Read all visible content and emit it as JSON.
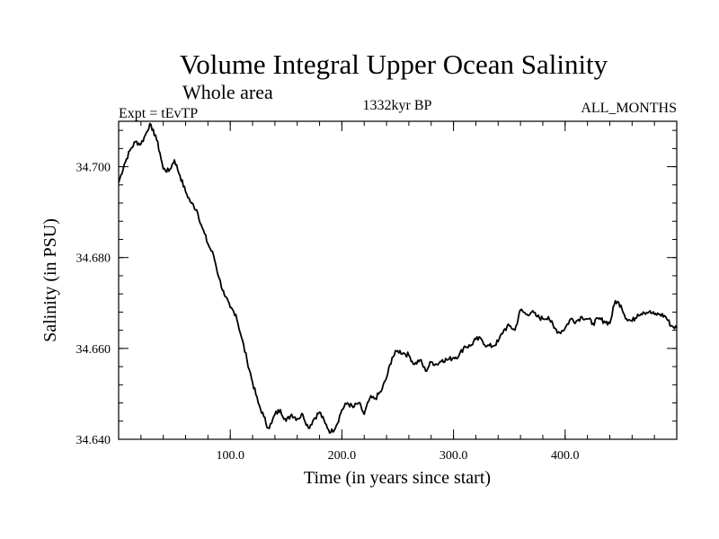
{
  "chart_data": {
    "type": "line",
    "title": "Volume Integral Upper Ocean Salinity",
    "subtitle": "Whole area",
    "left_label": "Expt = tEvTP",
    "center_label": "1332kyr BP",
    "right_label": "ALL_MONTHS",
    "xlabel": "Time (in years since start)",
    "ylabel": "Salinity (in PSU)",
    "xlim": [
      0,
      500
    ],
    "ylim": [
      34.64,
      34.71
    ],
    "x_ticks": [
      100,
      200,
      300,
      400
    ],
    "x_tick_labels": [
      "100.0",
      "200.0",
      "300.0",
      "400.0"
    ],
    "y_ticks": [
      34.64,
      34.66,
      34.68,
      34.7
    ],
    "y_tick_labels": [
      "34.640",
      "34.660",
      "34.680",
      "34.700"
    ],
    "x_minor_step": 20,
    "y_minor_step": 0.004,
    "grid": false,
    "line_color": "#000000",
    "series": [
      {
        "name": "salinity",
        "x": [
          0,
          5,
          10,
          15,
          20,
          24,
          28,
          30,
          33,
          37,
          40,
          45,
          50,
          55,
          60,
          65,
          70,
          75,
          80,
          85,
          90,
          95,
          100,
          105,
          110,
          115,
          120,
          125,
          130,
          134,
          137,
          140,
          145,
          150,
          155,
          160,
          165,
          170,
          175,
          180,
          185,
          190,
          195,
          200,
          205,
          210,
          215,
          220,
          225,
          230,
          235,
          240,
          245,
          250,
          255,
          260,
          265,
          270,
          275,
          280,
          285,
          290,
          295,
          300,
          305,
          310,
          315,
          320,
          325,
          330,
          335,
          340,
          345,
          350,
          355,
          360,
          365,
          370,
          375,
          380,
          385,
          390,
          395,
          400,
          405,
          410,
          415,
          420,
          425,
          430,
          435,
          440,
          445,
          450,
          455,
          460,
          465,
          470,
          475,
          480,
          485,
          490,
          495,
          500
        ],
        "values": [
          34.6965,
          34.7005,
          34.7035,
          34.7055,
          34.705,
          34.707,
          34.7095,
          34.708,
          34.707,
          34.703,
          34.6995,
          34.699,
          34.7015,
          34.698,
          34.6945,
          34.692,
          34.6905,
          34.6865,
          34.683,
          34.6805,
          34.6755,
          34.6715,
          34.669,
          34.6675,
          34.6625,
          34.6575,
          34.6525,
          34.648,
          34.645,
          34.6425,
          34.6435,
          34.6455,
          34.6465,
          34.644,
          34.6455,
          34.6445,
          34.6455,
          34.6425,
          34.6445,
          34.646,
          34.6435,
          34.6415,
          34.643,
          34.6465,
          34.648,
          34.647,
          34.648,
          34.6455,
          34.649,
          34.649,
          34.6505,
          34.6535,
          34.658,
          34.6595,
          34.659,
          34.6585,
          34.6565,
          34.6575,
          34.655,
          34.657,
          34.6565,
          34.6575,
          34.6575,
          34.658,
          34.6585,
          34.6605,
          34.6605,
          34.662,
          34.662,
          34.6605,
          34.6605,
          34.6615,
          34.664,
          34.665,
          34.664,
          34.6685,
          34.6675,
          34.668,
          34.667,
          34.6665,
          34.667,
          34.6645,
          34.6635,
          34.6645,
          34.6665,
          34.666,
          34.667,
          34.6665,
          34.6655,
          34.6665,
          34.666,
          34.6655,
          34.6705,
          34.6695,
          34.6665,
          34.666,
          34.6675,
          34.668,
          34.668,
          34.6675,
          34.6675,
          34.667,
          34.665,
          34.6645
        ]
      }
    ]
  }
}
